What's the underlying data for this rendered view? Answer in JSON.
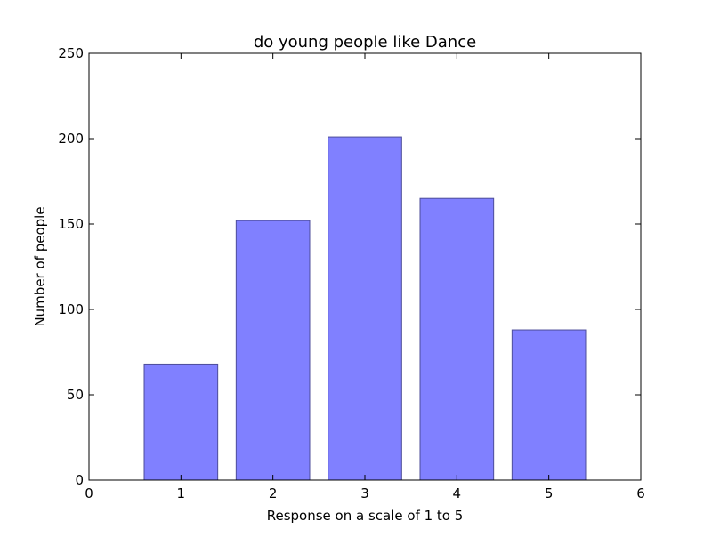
{
  "chart_data": {
    "type": "bar",
    "title": "do young people like Dance",
    "xlabel": "Response on a scale of 1 to 5",
    "ylabel": "Number of people",
    "x": [
      1,
      2,
      3,
      4,
      5
    ],
    "values": [
      68,
      152,
      201,
      165,
      88
    ],
    "xlim": [
      0,
      6
    ],
    "ylim": [
      0,
      250
    ],
    "xticks": [
      "0",
      "1",
      "2",
      "3",
      "4",
      "5",
      "6"
    ],
    "yticks": [
      "0",
      "50",
      "100",
      "150",
      "200",
      "250"
    ],
    "bar_color": "#8080ff",
    "bar_edge_color": "#4d4d99",
    "grid": false,
    "legend": "none"
  }
}
